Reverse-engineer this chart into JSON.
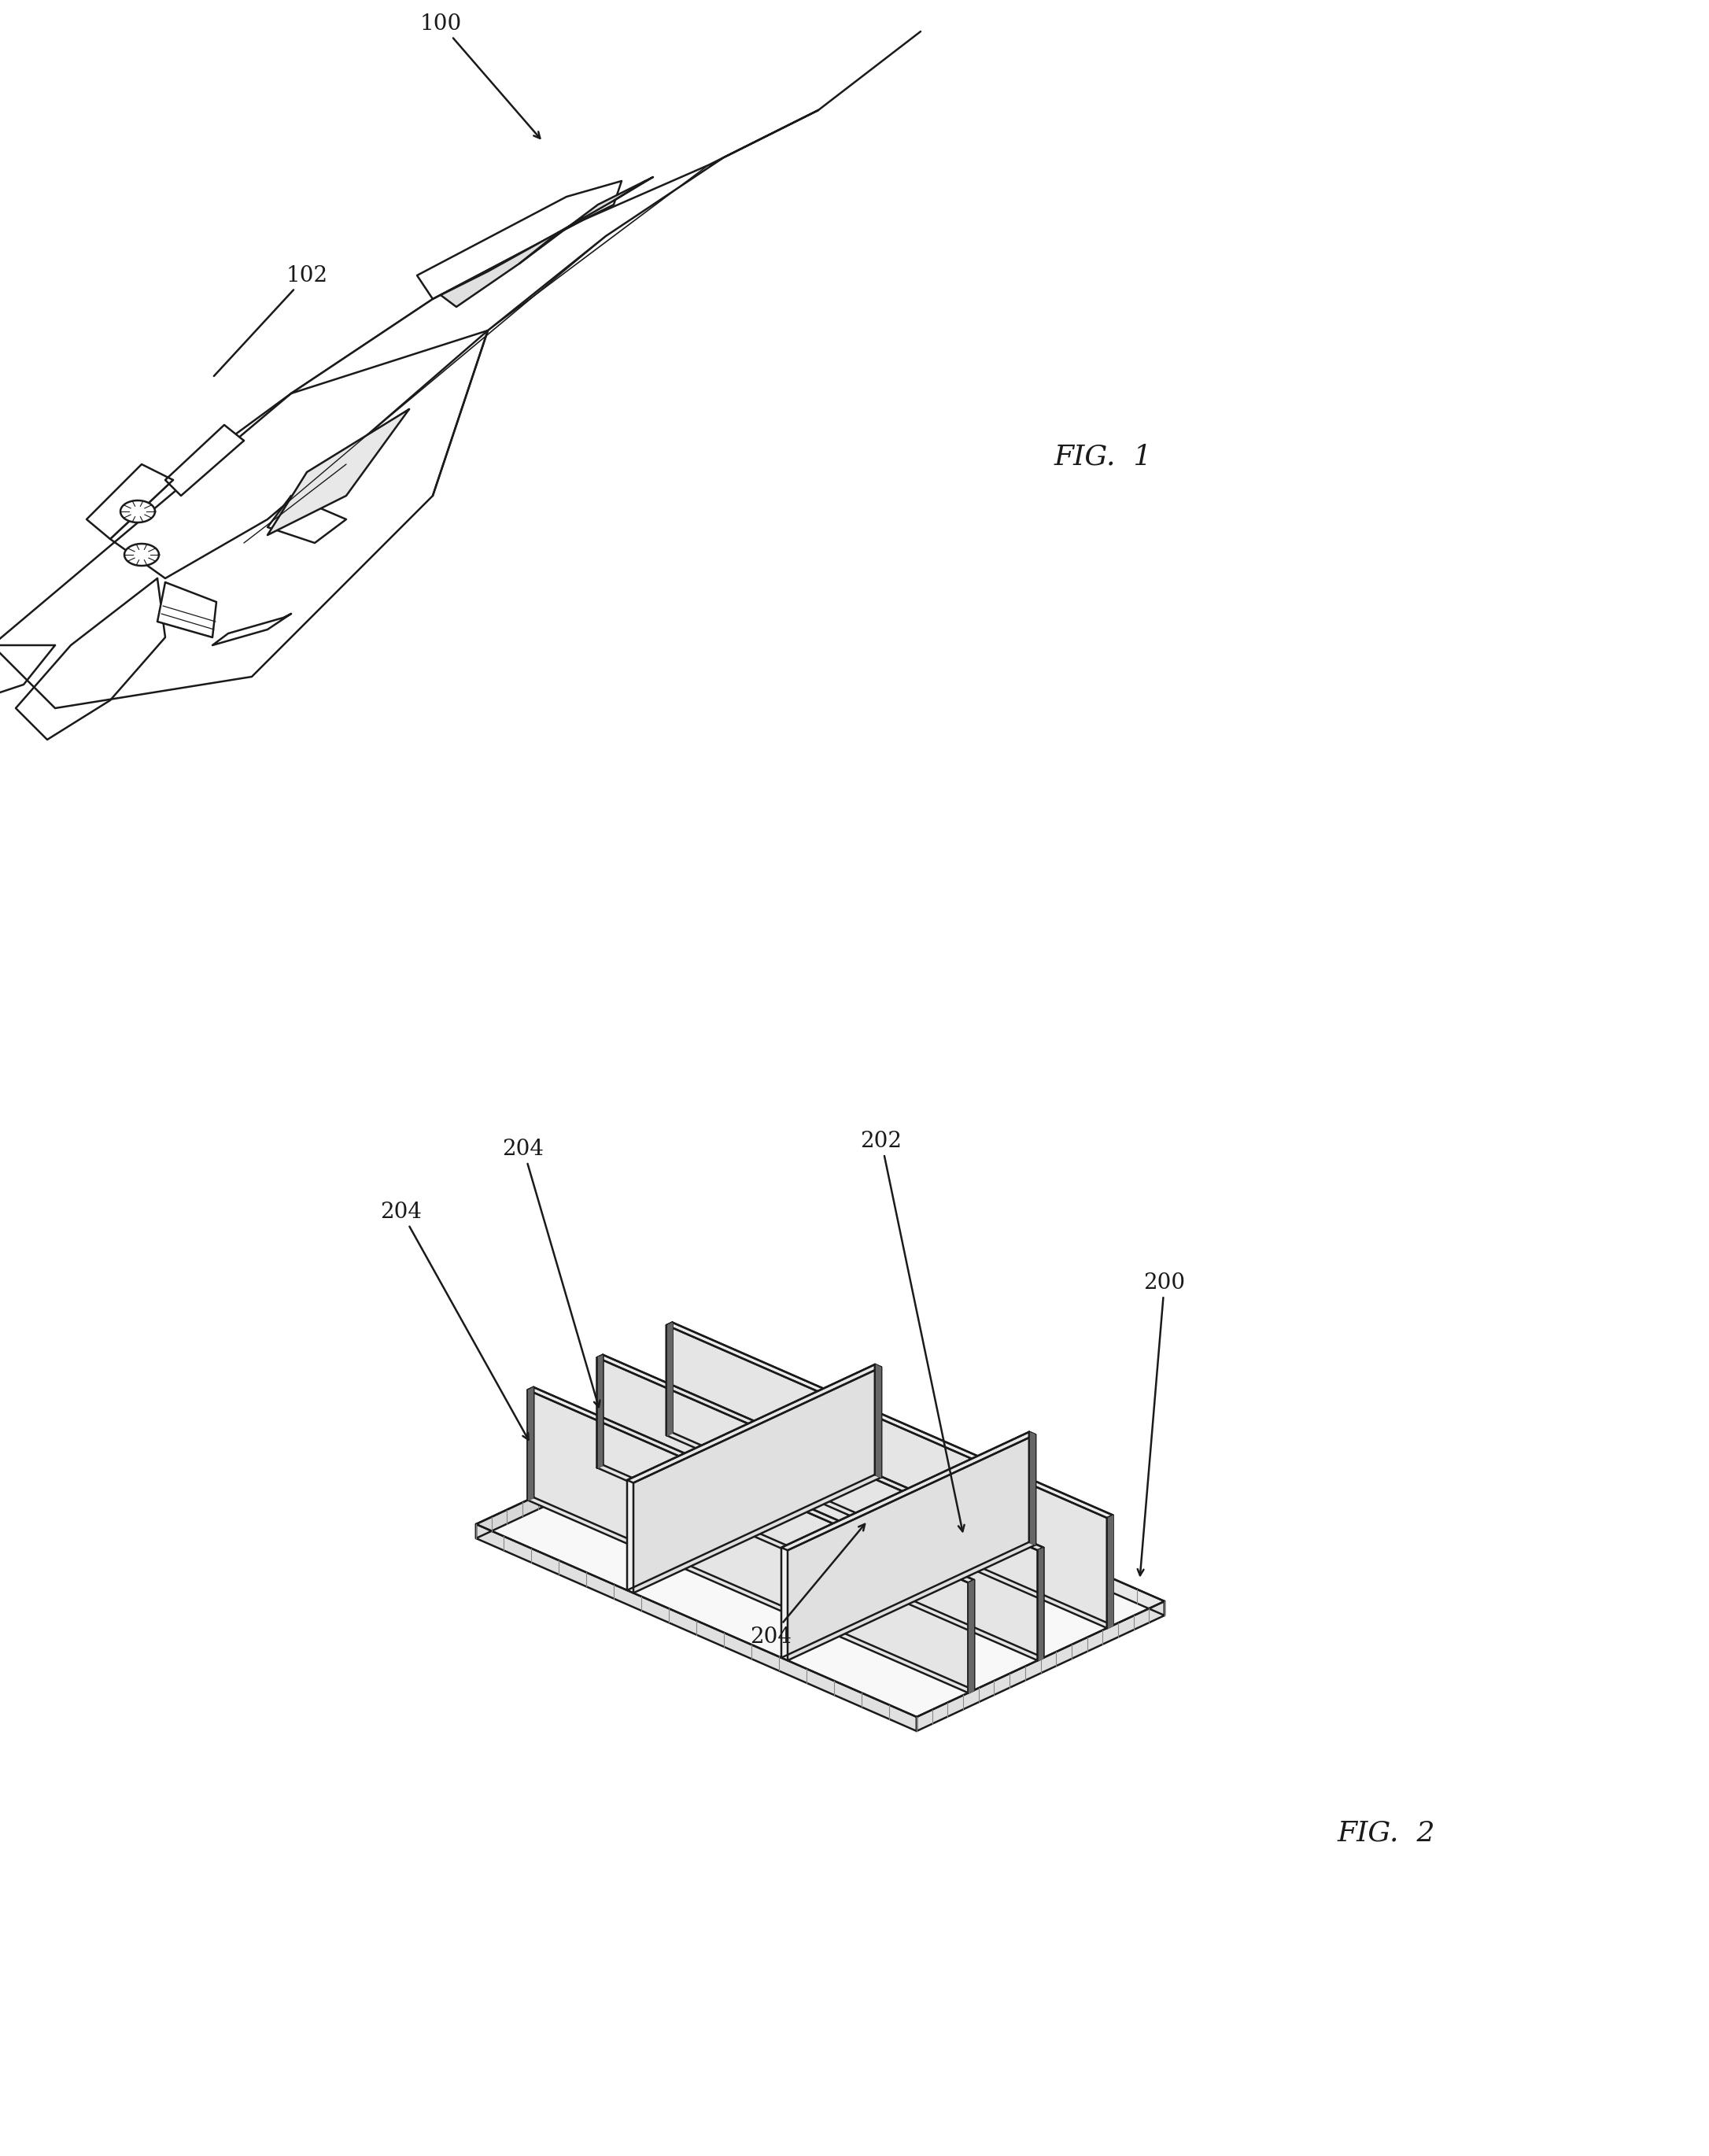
{
  "background_color": "#ffffff",
  "line_color": "#1a1a1a",
  "line_width": 1.8,
  "fig_width": 21.72,
  "fig_height": 27.4,
  "fig1_label": "FIG.  1",
  "fig2_label": "FIG.  2",
  "label_100": "100",
  "label_102": "102",
  "label_200": "200",
  "label_202": "202",
  "label_204a": "204",
  "label_204b": "204",
  "label_204c": "204",
  "font_size_fig": 26,
  "font_size_label": 20
}
